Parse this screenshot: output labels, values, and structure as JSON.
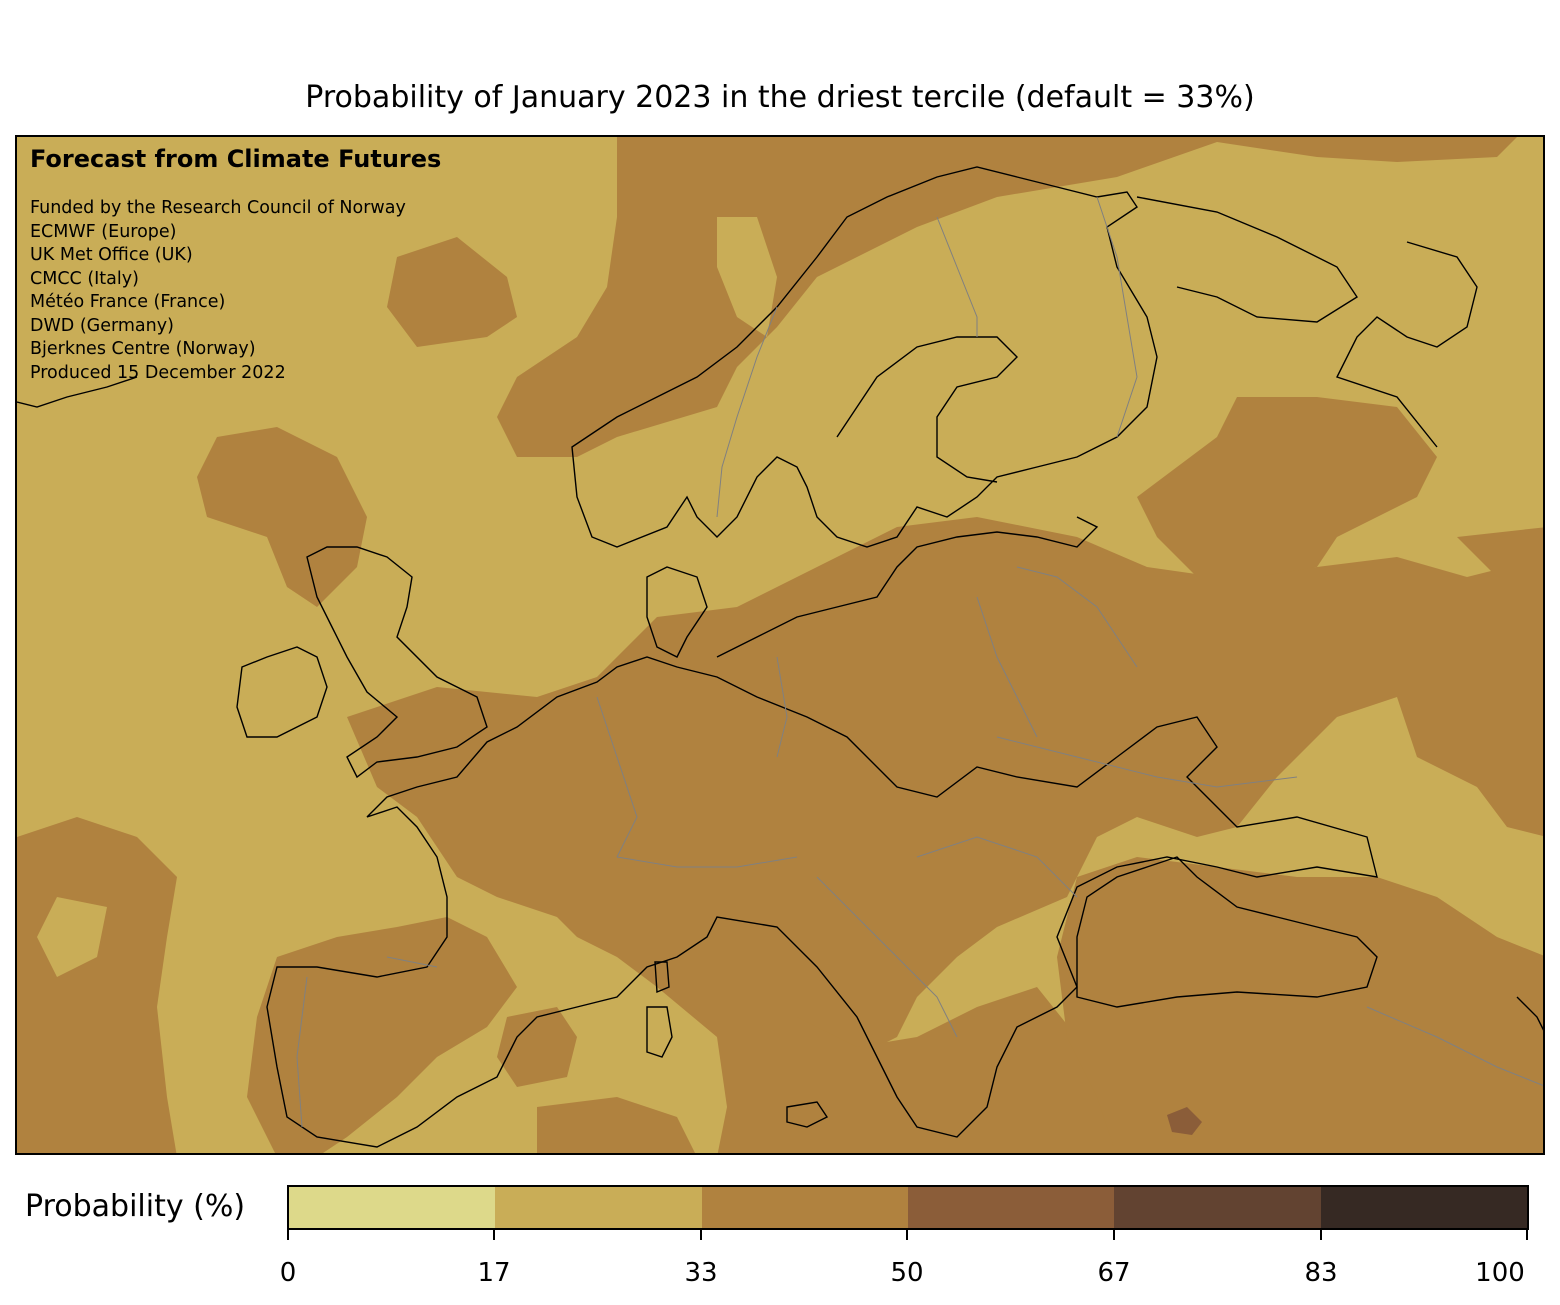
{
  "title": "Probability of January 2023 in the driest tercile (default = 33%)",
  "info": {
    "heading": "Forecast from Climate Futures",
    "lines": [
      "Funded by the Research Council of Norway",
      "ECMWF (Europe)",
      "UK Met Office (UK)",
      "CMCC (Italy)",
      "Météo France (France)",
      "DWD (Germany)",
      "Bjerknes Centre (Norway)",
      "Produced 15 December 2022"
    ]
  },
  "legend": {
    "label": "Probability (%)",
    "ticks": [
      "0",
      "17",
      "33",
      "50",
      "67",
      "83",
      "100"
    ],
    "colors": [
      "#ddd98a",
      "#c9ad57",
      "#b0823f",
      "#8b5d39",
      "#624331",
      "#362923"
    ]
  },
  "map": {
    "region": "Europe",
    "base_class_color": "#c9ad57",
    "elevated_class_color": "#b0823f",
    "high_class_color": "#8b5d39",
    "coastline_color": "#000000",
    "border_color": "#808080"
  }
}
